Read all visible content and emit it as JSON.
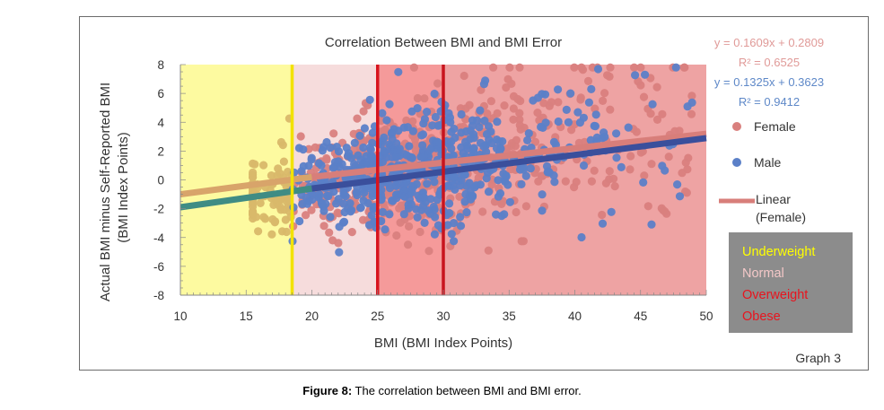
{
  "chart_data": {
    "type": "scatter",
    "title": "Correlation Between BMI and BMI Error",
    "xlabel": "BMI (BMI Index Points)",
    "ylabel_line1": "Actual BMI minus Self-Reported BMI",
    "ylabel_line2": "(BMI Index Points)",
    "xlim": [
      10,
      50
    ],
    "ylim": [
      -8,
      8
    ],
    "xticks": [
      10,
      15,
      20,
      25,
      30,
      35,
      40,
      45,
      50
    ],
    "yticks": [
      8,
      6,
      4,
      2,
      0,
      -2,
      -4,
      -6,
      -8
    ],
    "series": [
      {
        "name": "Female",
        "color": "#d9807e",
        "trend": {
          "slope": 0.1609,
          "intercept": 0.2809,
          "x_start": 10,
          "x_end": 50
        },
        "equation": "y = 0.1609x + 0.2809",
        "r2": "R² = 0.6525"
      },
      {
        "name": "Male",
        "color": "#5b80c8",
        "trend": {
          "slope": 0.1325,
          "intercept": 0.3623,
          "x_start": 10,
          "x_end": 50
        },
        "equation": "y = 0.1325x + 0.3623",
        "r2": "R² = 0.9412"
      }
    ],
    "trendline_legend": [
      "Linear",
      "(Female)"
    ],
    "regions": [
      {
        "label": "Underweight",
        "from": 10,
        "to": 18.5,
        "fill": "#fdfaa0",
        "text_color": "#ffff00"
      },
      {
        "label": "Normal",
        "from": 18.5,
        "to": 25,
        "fill": "#f6dcdc",
        "text_color": "#f4c8c8"
      },
      {
        "label": "Overweight",
        "from": 25,
        "to": 30,
        "fill": "#f59a9a",
        "text_color": "#e8141e"
      },
      {
        "label": "Obese",
        "from": 30,
        "to": 50,
        "fill": "#eea3a3",
        "text_color": "#e8141e"
      }
    ],
    "boundaries": [
      {
        "x": 18.5,
        "color": "#f2e200"
      },
      {
        "x": 25,
        "color": "#d8141e"
      },
      {
        "x": 30,
        "color": "#c8141e"
      }
    ],
    "graph_label": "Graph 3",
    "legend_placement": "right",
    "grid": false
  },
  "caption": {
    "label": "Figure 8:",
    "text": " The correlation between BMI and BMI error."
  }
}
